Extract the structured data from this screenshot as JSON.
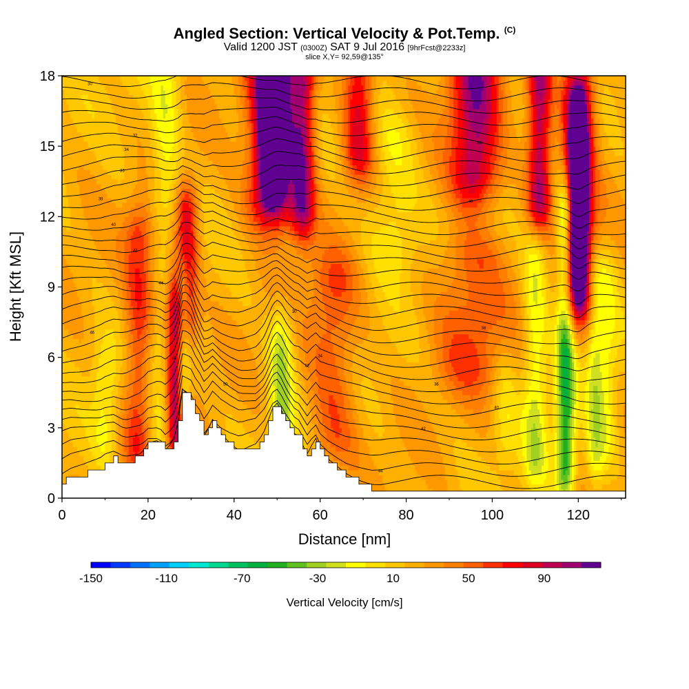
{
  "header": {
    "title": "Angled Section: Vertical Velocity & Pot.Temp.",
    "title_tag": "(C)",
    "valid_prefix": "Valid 1200 JST",
    "valid_utc": "(0300Z)",
    "valid_date": "SAT 9 Jul 2016",
    "forecast_tag": "[9hrFcst@2233z]",
    "slice": "slice X,Y= 92,59@135°"
  },
  "chart_data": {
    "type": "heatmap",
    "xlabel": "Distance [nm]",
    "ylabel": "Height [Kft MSL]",
    "xlim": [
      0,
      131
    ],
    "ylim": [
      0,
      18
    ],
    "x_ticks": [
      "0",
      "20",
      "40",
      "60",
      "80",
      "100",
      "120"
    ],
    "x_tick_values": [
      0,
      20,
      40,
      60,
      80,
      100,
      120
    ],
    "y_ticks": [
      "0",
      "3",
      "6",
      "9",
      "12",
      "15",
      "18"
    ],
    "y_tick_values": [
      0,
      3,
      6,
      9,
      12,
      15,
      18
    ],
    "terrain": {
      "x": [
        0,
        1,
        2,
        5,
        8,
        9,
        10,
        11,
        12,
        13,
        14,
        15,
        17,
        18,
        19,
        20,
        22,
        23,
        24,
        25,
        26,
        27,
        28,
        30,
        31,
        32,
        33,
        34,
        35,
        36,
        37,
        38,
        39,
        41,
        42,
        45,
        46,
        47,
        48,
        49,
        50,
        51,
        52,
        53,
        54,
        55,
        56,
        57,
        58,
        59,
        60,
        62,
        64,
        66,
        68,
        70,
        72,
        74,
        80,
        90,
        100,
        110,
        120,
        131
      ],
      "height_kft": [
        0.7,
        0.8,
        0.9,
        1.0,
        1.2,
        1.3,
        1.5,
        1.6,
        1.7,
        1.6,
        1.5,
        1.5,
        1.7,
        1.8,
        2.0,
        2.3,
        2.4,
        2.3,
        2.0,
        2.2,
        2.5,
        3.2,
        4.6,
        4.2,
        3.6,
        3.2,
        2.6,
        2.9,
        3.3,
        3.0,
        2.7,
        2.5,
        2.3,
        2.0,
        2.0,
        2.2,
        2.5,
        2.8,
        3.3,
        3.8,
        4.0,
        3.7,
        3.3,
        3.0,
        2.7,
        2.6,
        2.2,
        1.8,
        2.2,
        2.5,
        2.0,
        1.6,
        1.3,
        1.0,
        0.8,
        0.6,
        0.4,
        0.3,
        0.25,
        0.2,
        0.2,
        0.2,
        0.2,
        0.2
      ]
    },
    "velocity_features": [
      {
        "x": 18,
        "z0": 2.5,
        "z1": 11,
        "w": 2.5,
        "v": 45
      },
      {
        "x": 26.5,
        "z0": 3,
        "z1": 8,
        "w": 1.5,
        "v": 85
      },
      {
        "x": 29,
        "z0": 8,
        "z1": 12,
        "w": 1.8,
        "v": 60
      },
      {
        "x": 22,
        "z0": 1.5,
        "z1": 6,
        "w": 2.5,
        "v": -25
      },
      {
        "x": 15,
        "z0": 15,
        "z1": 18,
        "w": 4,
        "v": -5
      },
      {
        "x": 24,
        "z0": 13,
        "z1": 18,
        "w": 2.5,
        "v": -30
      },
      {
        "x": 49,
        "z0": 13,
        "z1": 18,
        "w": 4,
        "v": 90
      },
      {
        "x": 49,
        "z0": 14.5,
        "z1": 18,
        "w": 2,
        "v": 120
      },
      {
        "x": 56,
        "z0": 12.5,
        "z1": 17.5,
        "w": 2,
        "v": 70
      },
      {
        "x": 69,
        "z0": 15,
        "z1": 18,
        "w": 2.5,
        "v": 60
      },
      {
        "x": 96,
        "z0": 14,
        "z1": 18,
        "w": 4,
        "v": 80
      },
      {
        "x": 111,
        "z0": 13,
        "z1": 18,
        "w": 2,
        "v": 80
      },
      {
        "x": 120,
        "z0": 9,
        "z1": 17,
        "w": 2.5,
        "v": 100
      },
      {
        "x": 120,
        "z0": 11,
        "z1": 15,
        "w": 1.2,
        "v": 130
      },
      {
        "x": 117,
        "z0": 1.5,
        "z1": 12,
        "w": 1.5,
        "v": -70
      },
      {
        "x": 110,
        "z0": 2,
        "z1": 10,
        "w": 2,
        "v": -35
      },
      {
        "x": 124,
        "z0": 2,
        "z1": 9,
        "w": 1.5,
        "v": -35
      },
      {
        "x": 127,
        "z0": 3,
        "z1": 9,
        "w": 1.5,
        "v": -20
      },
      {
        "x": 77,
        "z0": 11,
        "z1": 15,
        "w": 4,
        "v": -25
      },
      {
        "x": 10,
        "z0": 3,
        "z1": 5,
        "w": 2,
        "v": -25
      },
      {
        "x": 103,
        "z0": 3,
        "z1": 5,
        "w": 2,
        "v": -20
      },
      {
        "x": 51,
        "z0": 3.5,
        "z1": 6.5,
        "w": 2,
        "v": -45
      },
      {
        "x": 28,
        "z0": 4.5,
        "z1": 8.5,
        "w": 1.2,
        "v": -60
      },
      {
        "x": 63,
        "z0": 3,
        "z1": 9,
        "w": 4,
        "v": 35
      },
      {
        "x": 95,
        "z0": 6,
        "z1": 10,
        "w": 6,
        "v": 35
      }
    ],
    "colorbar": {
      "label": "Vertical Velocity [cm/s]",
      "min": -150,
      "max": 110,
      "step": 10,
      "tick_labels": [
        "-150",
        "-110",
        "-70",
        "-30",
        "10",
        "50",
        "90"
      ],
      "tick_values": [
        -150,
        -110,
        -70,
        -30,
        10,
        50,
        90
      ],
      "colors": [
        "#0000ff",
        "#0038ff",
        "#0070ff",
        "#00a0ff",
        "#00d0ff",
        "#00e8d0",
        "#00d890",
        "#00c060",
        "#00b040",
        "#20b020",
        "#60c020",
        "#a0d020",
        "#d0e020",
        "#ffff00",
        "#ffe000",
        "#ffc800",
        "#ffb000",
        "#ff9800",
        "#ff8000",
        "#ff6000",
        "#ff3000",
        "#ff0000",
        "#e00020",
        "#c00050",
        "#a00070",
        "#600090"
      ]
    },
    "theta_label_values": [
      30,
      32,
      34,
      36,
      38,
      40,
      42,
      44,
      46,
      48,
      50
    ],
    "theta_labels": [
      "30",
      "32",
      "34",
      "36",
      "38",
      "40",
      "42",
      "44",
      "46",
      "48",
      "50"
    ]
  }
}
